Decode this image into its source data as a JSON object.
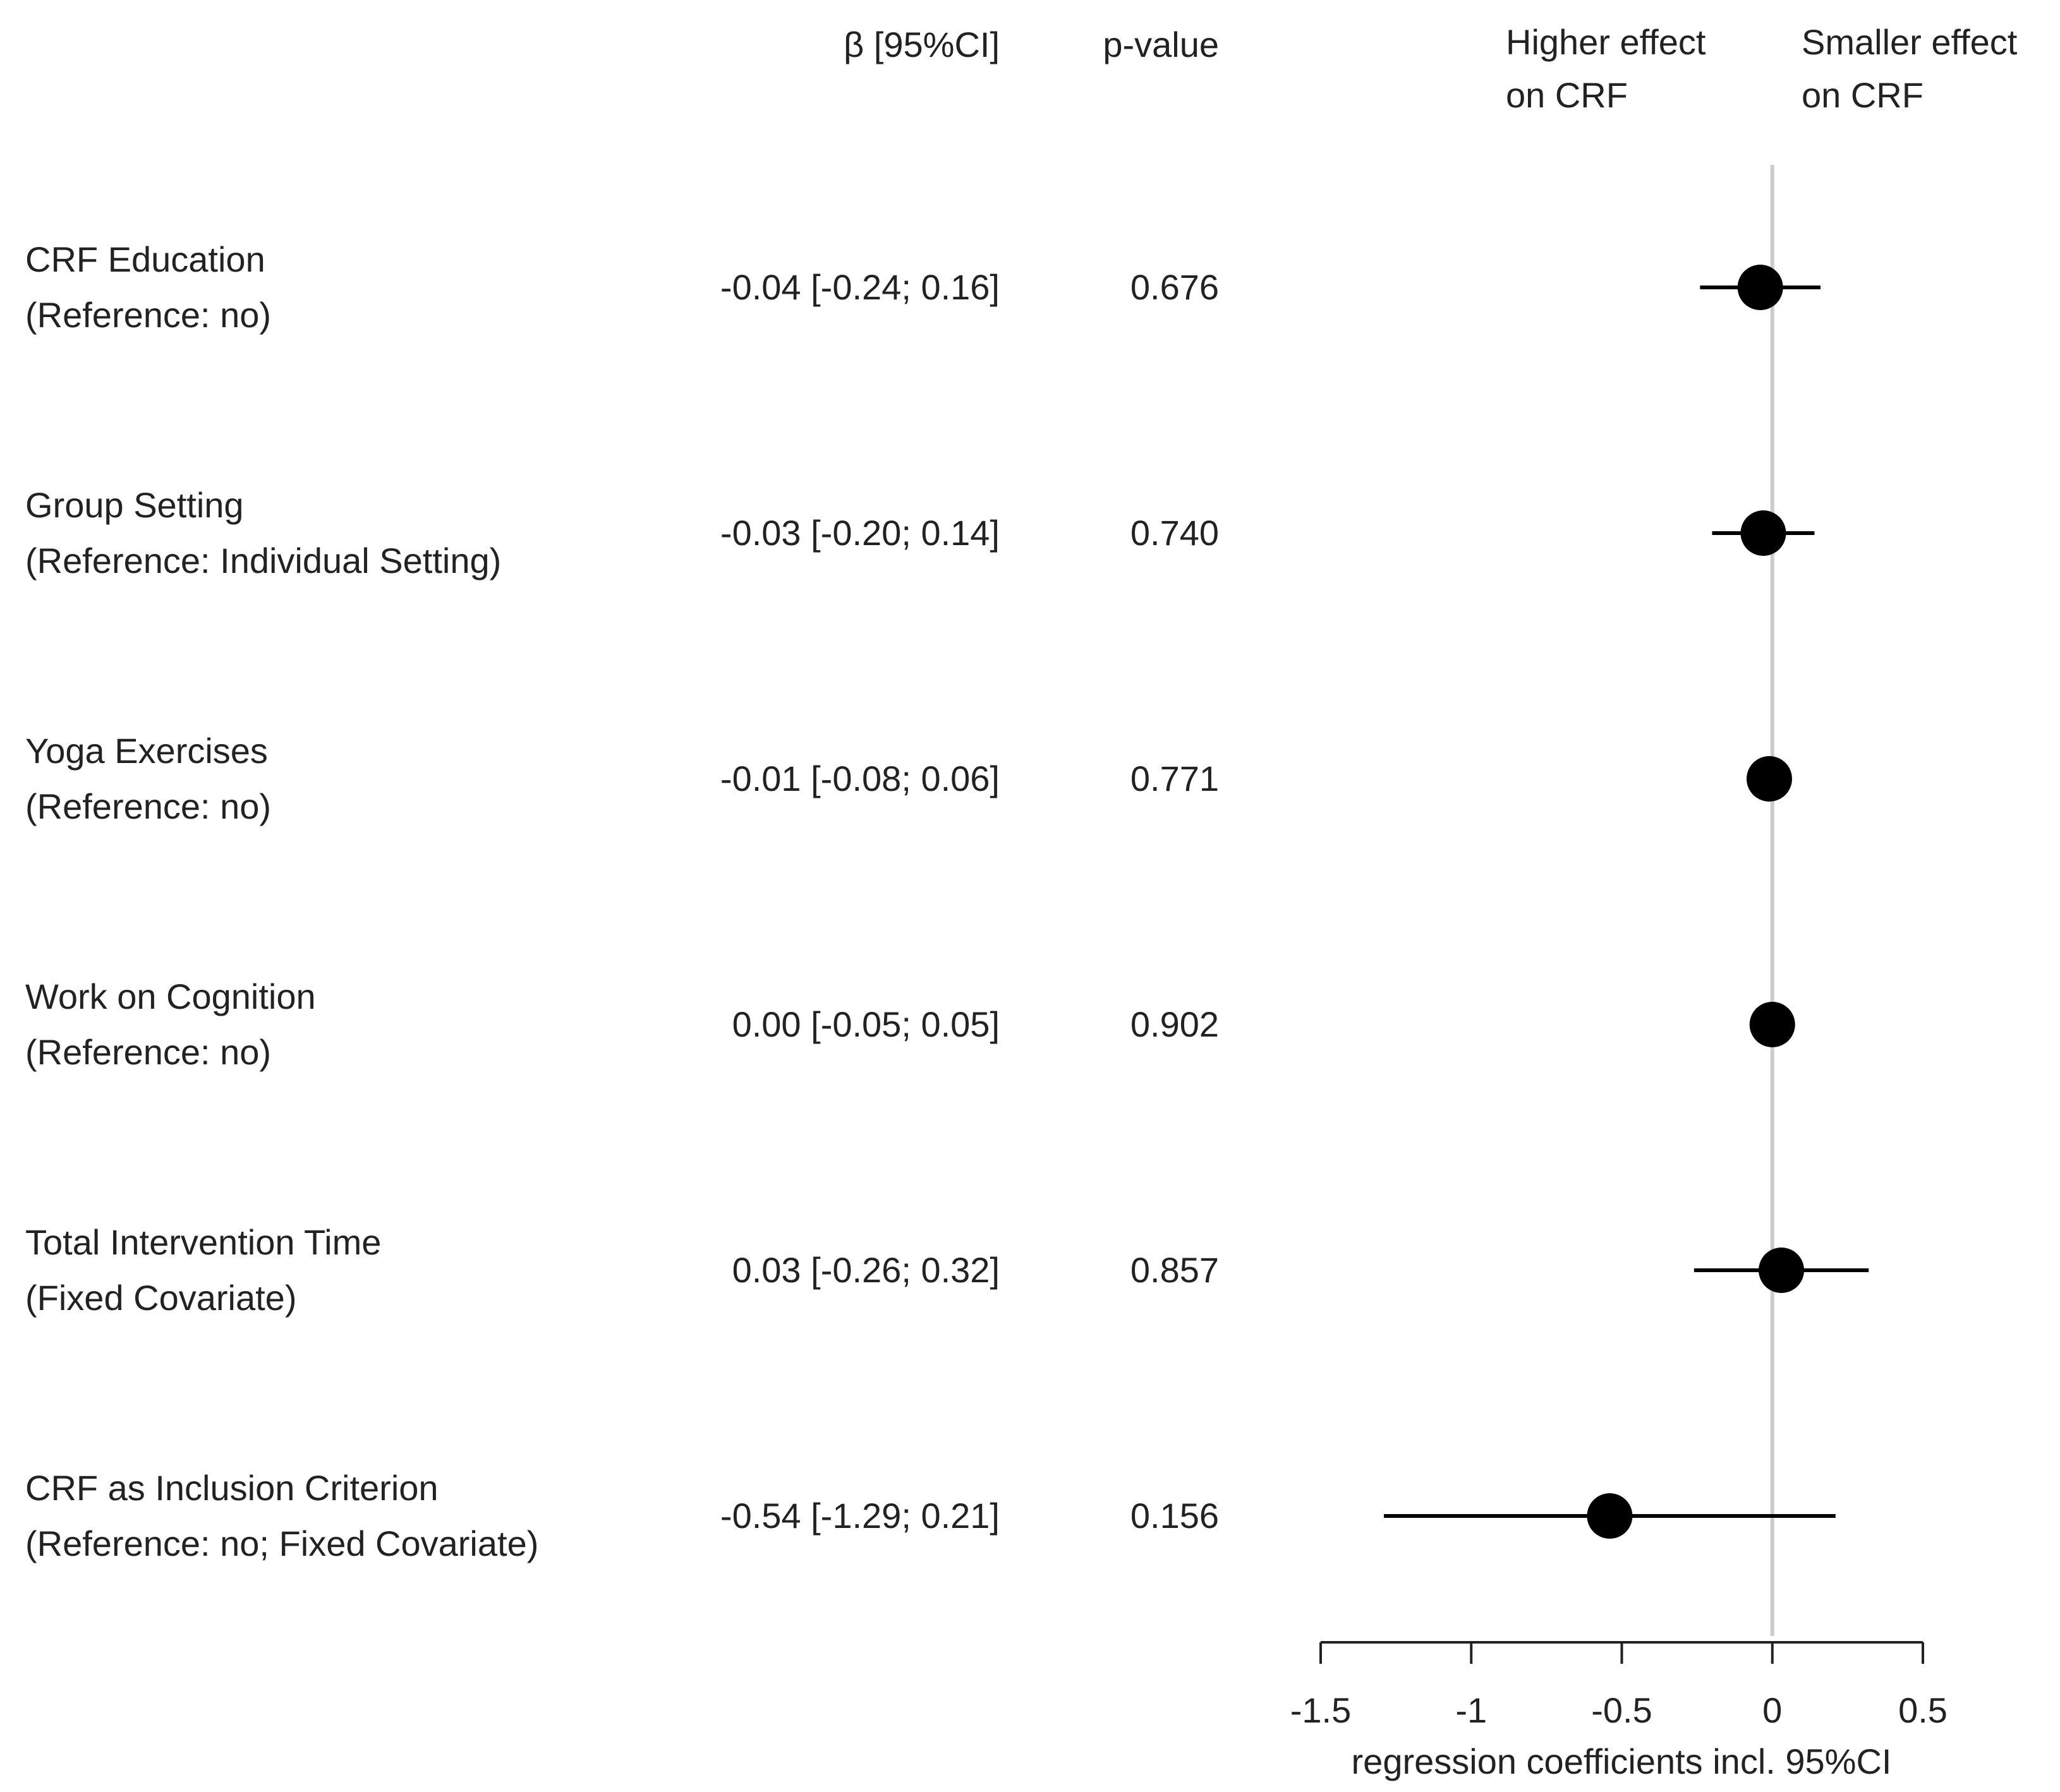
{
  "chart_data": {
    "type": "forest",
    "columns": [
      "β [95%CI]",
      "p-value"
    ],
    "annotations": [
      [
        "Higher effect",
        "on CRF"
      ],
      [
        "Smaller effect",
        "on CRF"
      ]
    ],
    "categories": [
      [
        "CRF Education",
        "(Reference: no)"
      ],
      [
        "Group Setting",
        "(Reference: Individual Setting)"
      ],
      [
        "Yoga Exercises",
        "(Reference: no)"
      ],
      [
        "Work on Cognition",
        "(Reference: no)"
      ],
      [
        "Total Intervention Time",
        "(Fixed Covariate)"
      ],
      [
        "CRF as Inclusion Criterion",
        "(Reference: no; Fixed Covariate)"
      ]
    ],
    "values": [
      -0.04,
      -0.03,
      -0.01,
      0.0,
      0.03,
      -0.54
    ],
    "lower": [
      -0.24,
      -0.2,
      -0.08,
      -0.05,
      -0.26,
      -1.29
    ],
    "upper": [
      0.16,
      0.14,
      0.06,
      0.05,
      0.32,
      0.21
    ],
    "value_labels": [
      "-0.04 [-0.24; 0.16]",
      "-0.03 [-0.20; 0.14]",
      "-0.01 [-0.08; 0.06]",
      "0.00 [-0.05; 0.05]",
      "0.03 [-0.26; 0.32]",
      "-0.54 [-1.29; 0.21]"
    ],
    "p_values": [
      "0.676",
      "0.740",
      "0.771",
      "0.902",
      "0.857",
      "0.156"
    ],
    "xlabel": "regression coefficients incl. 95%CI",
    "xlim": [
      -1.5,
      0.5
    ],
    "xticks": [
      -1.5,
      -1,
      -0.5,
      0,
      0.5
    ],
    "color": "#000000",
    "ref_line_color": "#cccccc"
  }
}
